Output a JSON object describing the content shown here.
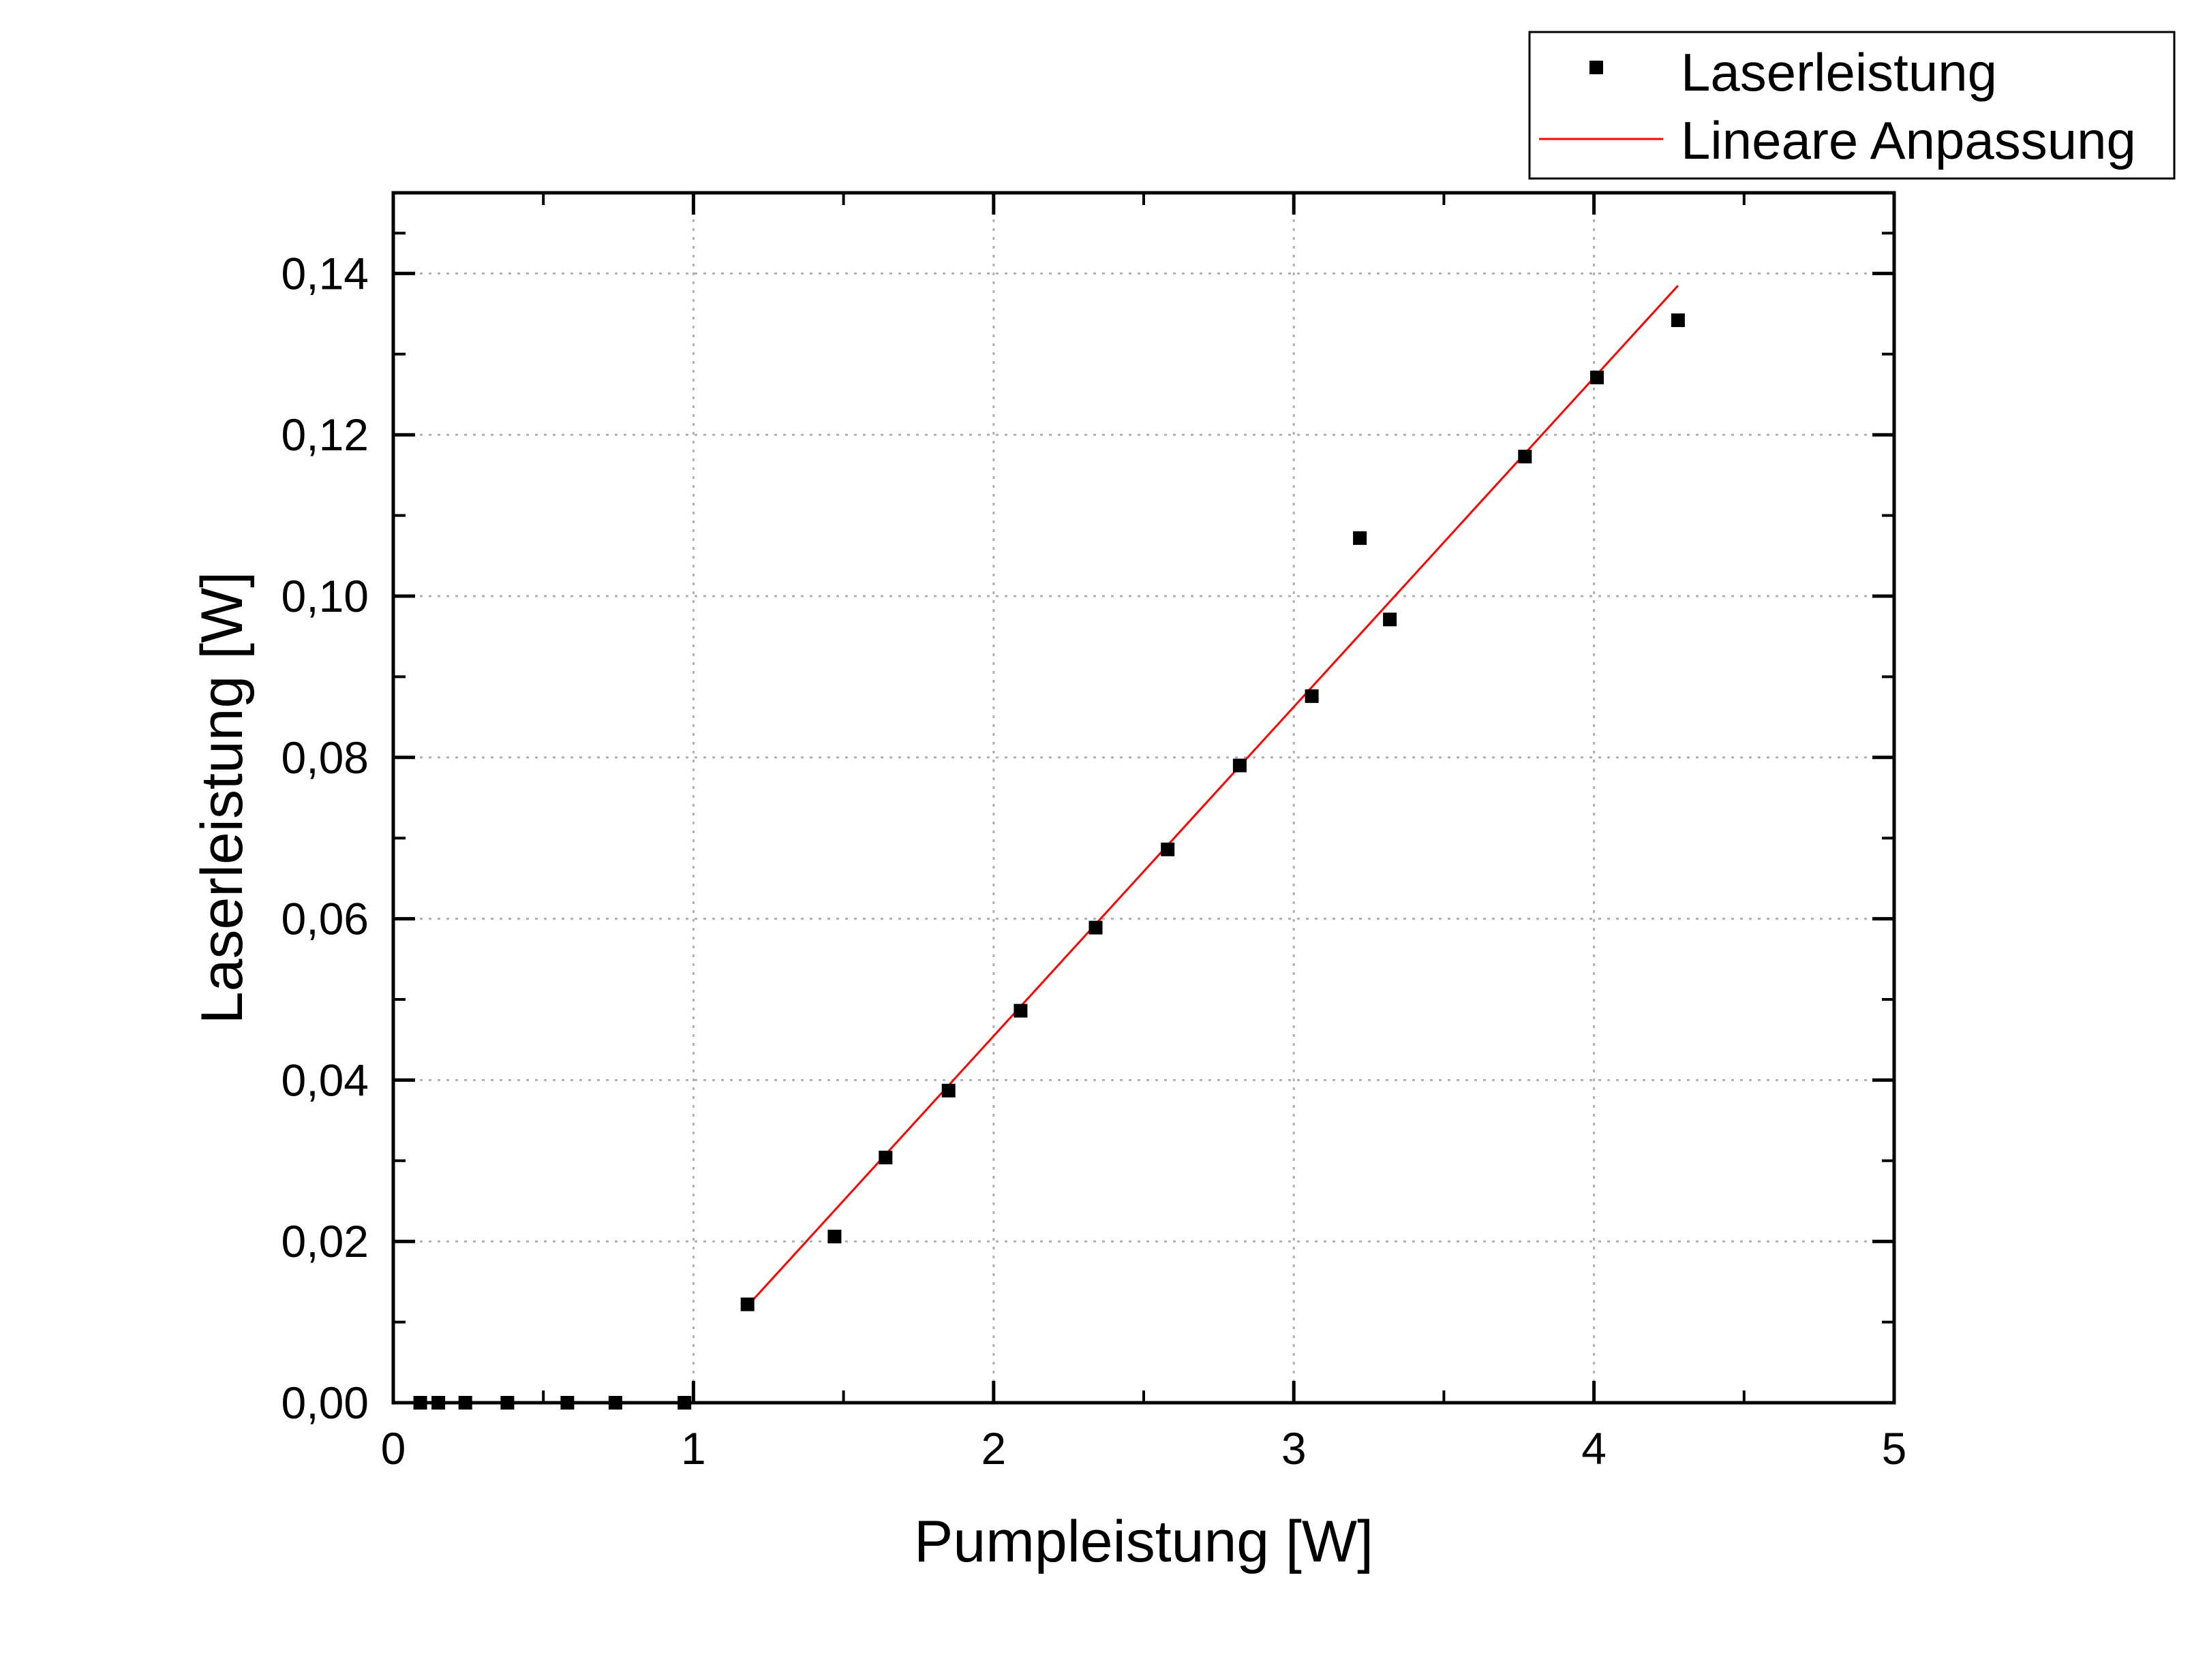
{
  "chart_data": {
    "type": "scatter",
    "title": "",
    "xlabel": "Pumpleistung [W]",
    "ylabel": "Laserleistung [W]",
    "xlim": [
      0,
      5
    ],
    "ylim": [
      0,
      0.15
    ],
    "x_ticks": [
      0,
      1,
      2,
      3,
      4,
      5
    ],
    "x_tick_labels": [
      "0",
      "1",
      "2",
      "3",
      "4",
      "5"
    ],
    "y_ticks": [
      0,
      0.02,
      0.04,
      0.06,
      0.08,
      0.1,
      0.12,
      0.14
    ],
    "y_tick_labels": [
      "0,00",
      "0,02",
      "0,04",
      "0,06",
      "0,08",
      "0,10",
      "0,12",
      "0,14"
    ],
    "grid": true,
    "legend_position": "top-right, outside plot",
    "series": [
      {
        "name": "Laserleistung",
        "kind": "scatter",
        "marker": "square",
        "color": "#000000",
        "x": [
          0.09,
          0.15,
          0.24,
          0.38,
          0.58,
          0.74,
          0.97,
          1.18,
          1.47,
          1.64,
          1.85,
          2.09,
          2.34,
          2.58,
          2.82,
          3.06,
          3.22,
          3.32,
          3.77,
          4.01,
          4.28
        ],
        "y": [
          0.0,
          0.0,
          0.0,
          0.0,
          0.0,
          0.0,
          0.0,
          0.0122,
          0.0206,
          0.0304,
          0.0387,
          0.0486,
          0.0589,
          0.0686,
          0.079,
          0.0876,
          0.1072,
          0.0971,
          0.1173,
          0.1271,
          0.1342
        ]
      },
      {
        "name": "Lineare Anpassung",
        "kind": "line",
        "color": "#ff0000",
        "x": [
          1.18,
          4.28
        ],
        "y": [
          0.012,
          0.1385
        ]
      }
    ]
  }
}
